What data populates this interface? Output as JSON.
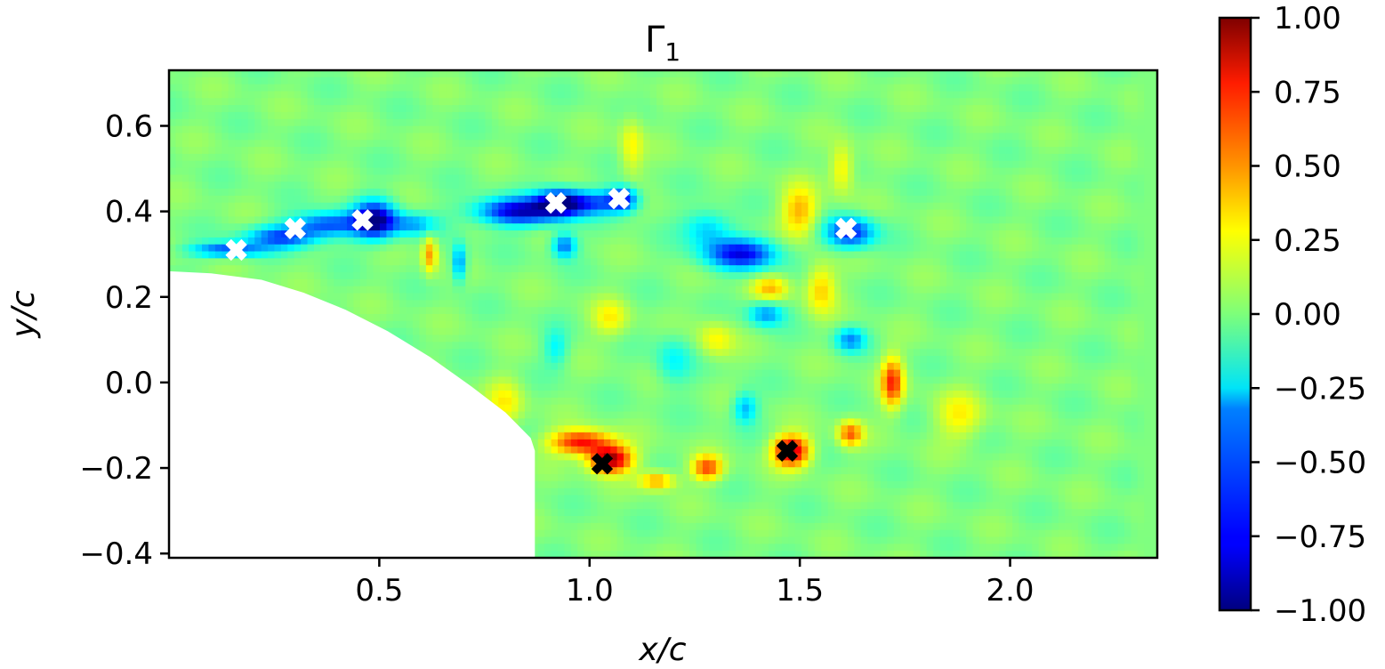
{
  "chart_data": {
    "type": "heatmap",
    "title": "Γ",
    "title_subscript": "1",
    "xlabel": "x/c",
    "ylabel": "y/c",
    "xlim": [
      0.0,
      2.35
    ],
    "ylim": [
      -0.41,
      0.73
    ],
    "x_ticks": [
      0.5,
      1.0,
      1.5,
      2.0
    ],
    "x_tick_labels": [
      "0.5",
      "1.0",
      "1.5",
      "2.0"
    ],
    "y_ticks": [
      -0.4,
      -0.2,
      0.0,
      0.2,
      0.4,
      0.6
    ],
    "y_tick_labels": [
      "−0.4",
      "−0.2",
      "0.0",
      "0.2",
      "0.4",
      "0.6"
    ],
    "colorbar": {
      "colormap": "jet",
      "range": [
        -1.0,
        1.0
      ],
      "ticks": [
        1.0,
        0.75,
        0.5,
        0.25,
        0.0,
        -0.25,
        -0.5,
        -0.75,
        -1.0
      ],
      "tick_labels": [
        "1.00",
        "0.75",
        "0.50",
        "0.25",
        "0.00",
        "−0.25",
        "−0.50",
        "−0.75",
        "−1.00"
      ]
    },
    "grid": false,
    "field_blobs": [
      {
        "x": 0.14,
        "y": 0.31,
        "sx": 0.06,
        "sy": 0.012,
        "v": -0.6
      },
      {
        "x": 0.27,
        "y": 0.34,
        "sx": 0.06,
        "sy": 0.018,
        "v": -0.6
      },
      {
        "x": 0.38,
        "y": 0.37,
        "sx": 0.06,
        "sy": 0.02,
        "v": -0.6
      },
      {
        "x": 0.49,
        "y": 0.38,
        "sx": 0.035,
        "sy": 0.03,
        "v": -0.95
      },
      {
        "x": 0.58,
        "y": 0.37,
        "sx": 0.04,
        "sy": 0.018,
        "v": -0.4
      },
      {
        "x": 0.83,
        "y": 0.4,
        "sx": 0.07,
        "sy": 0.022,
        "v": -0.85
      },
      {
        "x": 0.93,
        "y": 0.42,
        "sx": 0.04,
        "sy": 0.022,
        "v": -0.9
      },
      {
        "x": 1.02,
        "y": 0.42,
        "sx": 0.05,
        "sy": 0.02,
        "v": -0.5
      },
      {
        "x": 1.08,
        "y": 0.43,
        "sx": 0.025,
        "sy": 0.02,
        "v": -0.6
      },
      {
        "x": 0.62,
        "y": 0.3,
        "sx": 0.012,
        "sy": 0.03,
        "v": 0.45
      },
      {
        "x": 0.69,
        "y": 0.28,
        "sx": 0.012,
        "sy": 0.03,
        "v": -0.5
      },
      {
        "x": 0.94,
        "y": 0.32,
        "sx": 0.02,
        "sy": 0.02,
        "v": -0.55
      },
      {
        "x": 1.36,
        "y": 0.3,
        "sx": 0.06,
        "sy": 0.025,
        "v": -0.75
      },
      {
        "x": 1.28,
        "y": 0.36,
        "sx": 0.04,
        "sy": 0.03,
        "v": -0.35
      },
      {
        "x": 1.62,
        "y": 0.35,
        "sx": 0.04,
        "sy": 0.025,
        "v": -0.7
      },
      {
        "x": 1.1,
        "y": 0.55,
        "sx": 0.02,
        "sy": 0.05,
        "v": 0.25
      },
      {
        "x": 1.6,
        "y": 0.5,
        "sx": 0.02,
        "sy": 0.04,
        "v": 0.3
      },
      {
        "x": 1.5,
        "y": 0.4,
        "sx": 0.03,
        "sy": 0.04,
        "v": 0.4
      },
      {
        "x": 1.43,
        "y": 0.22,
        "sx": 0.03,
        "sy": 0.02,
        "v": 0.35
      },
      {
        "x": 1.42,
        "y": 0.16,
        "sx": 0.03,
        "sy": 0.02,
        "v": -0.45
      },
      {
        "x": 1.55,
        "y": 0.22,
        "sx": 0.025,
        "sy": 0.04,
        "v": 0.35
      },
      {
        "x": 1.62,
        "y": 0.1,
        "sx": 0.025,
        "sy": 0.02,
        "v": -0.45
      },
      {
        "x": 1.37,
        "y": -0.06,
        "sx": 0.02,
        "sy": 0.025,
        "v": -0.4
      },
      {
        "x": 1.72,
        "y": 0.0,
        "sx": 0.018,
        "sy": 0.04,
        "v": 0.65
      },
      {
        "x": 1.88,
        "y": -0.08,
        "sx": 0.04,
        "sy": 0.04,
        "v": 0.25
      },
      {
        "x": 0.98,
        "y": -0.14,
        "sx": 0.05,
        "sy": 0.02,
        "v": 0.75
      },
      {
        "x": 1.05,
        "y": -0.18,
        "sx": 0.035,
        "sy": 0.022,
        "v": 0.95
      },
      {
        "x": 1.16,
        "y": -0.23,
        "sx": 0.03,
        "sy": 0.015,
        "v": 0.45
      },
      {
        "x": 1.28,
        "y": -0.2,
        "sx": 0.025,
        "sy": 0.02,
        "v": 0.6
      },
      {
        "x": 1.48,
        "y": -0.16,
        "sx": 0.03,
        "sy": 0.025,
        "v": 0.9
      },
      {
        "x": 1.62,
        "y": -0.12,
        "sx": 0.02,
        "sy": 0.02,
        "v": 0.55
      },
      {
        "x": 0.8,
        "y": -0.05,
        "sx": 0.03,
        "sy": 0.04,
        "v": 0.25
      },
      {
        "x": 1.2,
        "y": 0.05,
        "sx": 0.03,
        "sy": 0.04,
        "v": -0.25
      },
      {
        "x": 1.05,
        "y": 0.15,
        "sx": 0.03,
        "sy": 0.03,
        "v": 0.25
      },
      {
        "x": 0.92,
        "y": 0.08,
        "sx": 0.02,
        "sy": 0.03,
        "v": -0.25
      },
      {
        "x": 1.3,
        "y": 0.1,
        "sx": 0.03,
        "sy": 0.03,
        "v": 0.25
      }
    ],
    "markers": [
      {
        "x": 0.16,
        "y": 0.31,
        "color": "#ffffff"
      },
      {
        "x": 0.3,
        "y": 0.36,
        "color": "#ffffff"
      },
      {
        "x": 0.46,
        "y": 0.38,
        "color": "#ffffff"
      },
      {
        "x": 0.92,
        "y": 0.42,
        "color": "#ffffff"
      },
      {
        "x": 1.07,
        "y": 0.43,
        "color": "#ffffff"
      },
      {
        "x": 1.61,
        "y": 0.36,
        "color": "#ffffff"
      },
      {
        "x": 1.03,
        "y": -0.19,
        "color": "#000000"
      },
      {
        "x": 1.47,
        "y": -0.16,
        "color": "#000000"
      }
    ],
    "masked_region": [
      [
        0.0,
        0.26
      ],
      [
        0.1,
        0.255
      ],
      [
        0.22,
        0.24
      ],
      [
        0.32,
        0.21
      ],
      [
        0.42,
        0.17
      ],
      [
        0.52,
        0.12
      ],
      [
        0.62,
        0.06
      ],
      [
        0.72,
        -0.01
      ],
      [
        0.8,
        -0.07
      ],
      [
        0.86,
        -0.13
      ],
      [
        0.87,
        -0.16
      ],
      [
        0.87,
        -0.41
      ],
      [
        0.0,
        -0.41
      ]
    ]
  }
}
